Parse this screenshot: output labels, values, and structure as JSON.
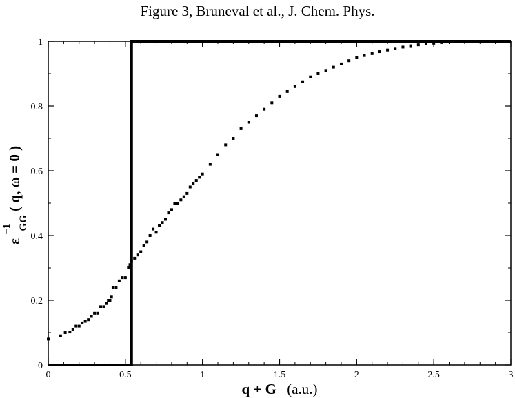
{
  "title": "Figure 3, Bruneval et al., J. Chem. Phys.",
  "chart_data": {
    "type": "scatter",
    "title": "Figure 3, Bruneval et al., J. Chem. Phys.",
    "xlabel": {
      "main": "q + G",
      "unit": "(a.u.)"
    },
    "ylabel": {
      "base": "ε",
      "sup": "−1",
      "sub": "GG",
      "args": "( q, ω = 0 )"
    },
    "xlim": [
      0,
      3
    ],
    "ylim": [
      0,
      1
    ],
    "x_ticks": [
      "0",
      "0.5",
      "1",
      "1.5",
      "2",
      "2.5",
      "3"
    ],
    "y_ticks": [
      "0",
      "0.2",
      "0.4",
      "0.6",
      "0.8",
      "1"
    ],
    "grid": false,
    "series": [
      {
        "kind": "points",
        "color": "#000000",
        "points": [
          [
            0.0,
            0.08
          ],
          [
            0.08,
            0.09
          ],
          [
            0.11,
            0.1
          ],
          [
            0.14,
            0.102
          ],
          [
            0.16,
            0.11
          ],
          [
            0.18,
            0.12
          ],
          [
            0.2,
            0.12
          ],
          [
            0.22,
            0.13
          ],
          [
            0.24,
            0.135
          ],
          [
            0.26,
            0.14
          ],
          [
            0.28,
            0.15
          ],
          [
            0.3,
            0.16
          ],
          [
            0.32,
            0.16
          ],
          [
            0.34,
            0.18
          ],
          [
            0.36,
            0.18
          ],
          [
            0.38,
            0.19
          ],
          [
            0.39,
            0.2
          ],
          [
            0.4,
            0.2
          ],
          [
            0.41,
            0.21
          ],
          [
            0.42,
            0.24
          ],
          [
            0.44,
            0.24
          ],
          [
            0.46,
            0.26
          ],
          [
            0.48,
            0.27
          ],
          [
            0.5,
            0.27
          ],
          [
            0.52,
            0.3
          ],
          [
            0.53,
            0.31
          ],
          [
            0.54,
            0.32
          ],
          [
            0.56,
            0.33
          ],
          [
            0.58,
            0.34
          ],
          [
            0.6,
            0.35
          ],
          [
            0.62,
            0.37
          ],
          [
            0.64,
            0.38
          ],
          [
            0.66,
            0.4
          ],
          [
            0.68,
            0.42
          ],
          [
            0.7,
            0.41
          ],
          [
            0.72,
            0.43
          ],
          [
            0.74,
            0.44
          ],
          [
            0.76,
            0.45
          ],
          [
            0.78,
            0.47
          ],
          [
            0.8,
            0.48
          ],
          [
            0.82,
            0.5
          ],
          [
            0.84,
            0.5
          ],
          [
            0.86,
            0.51
          ],
          [
            0.88,
            0.52
          ],
          [
            0.9,
            0.53
          ],
          [
            0.92,
            0.55
          ],
          [
            0.94,
            0.56
          ],
          [
            0.96,
            0.57
          ],
          [
            0.98,
            0.58
          ],
          [
            1.0,
            0.59
          ],
          [
            1.05,
            0.62
          ],
          [
            1.1,
            0.65
          ],
          [
            1.15,
            0.68
          ],
          [
            1.2,
            0.7
          ],
          [
            1.25,
            0.73
          ],
          [
            1.3,
            0.75
          ],
          [
            1.35,
            0.77
          ],
          [
            1.4,
            0.79
          ],
          [
            1.45,
            0.81
          ],
          [
            1.5,
            0.83
          ],
          [
            1.55,
            0.845
          ],
          [
            1.6,
            0.86
          ],
          [
            1.65,
            0.875
          ],
          [
            1.7,
            0.89
          ],
          [
            1.75,
            0.9
          ],
          [
            1.8,
            0.91
          ],
          [
            1.85,
            0.92
          ],
          [
            1.9,
            0.93
          ],
          [
            1.95,
            0.94
          ],
          [
            2.0,
            0.95
          ],
          [
            2.05,
            0.956
          ],
          [
            2.1,
            0.962
          ],
          [
            2.15,
            0.968
          ],
          [
            2.2,
            0.973
          ],
          [
            2.25,
            0.978
          ],
          [
            2.3,
            0.982
          ],
          [
            2.35,
            0.986
          ],
          [
            2.4,
            0.989
          ],
          [
            2.45,
            0.992
          ],
          [
            2.5,
            0.994
          ],
          [
            2.55,
            0.996
          ],
          [
            2.6,
            0.998
          ],
          [
            2.65,
            0.999
          ]
        ]
      },
      {
        "kind": "step-line",
        "color": "#000000",
        "points": [
          [
            0,
            0
          ],
          [
            0.54,
            0
          ],
          [
            0.54,
            1
          ],
          [
            3,
            1
          ]
        ]
      }
    ]
  }
}
